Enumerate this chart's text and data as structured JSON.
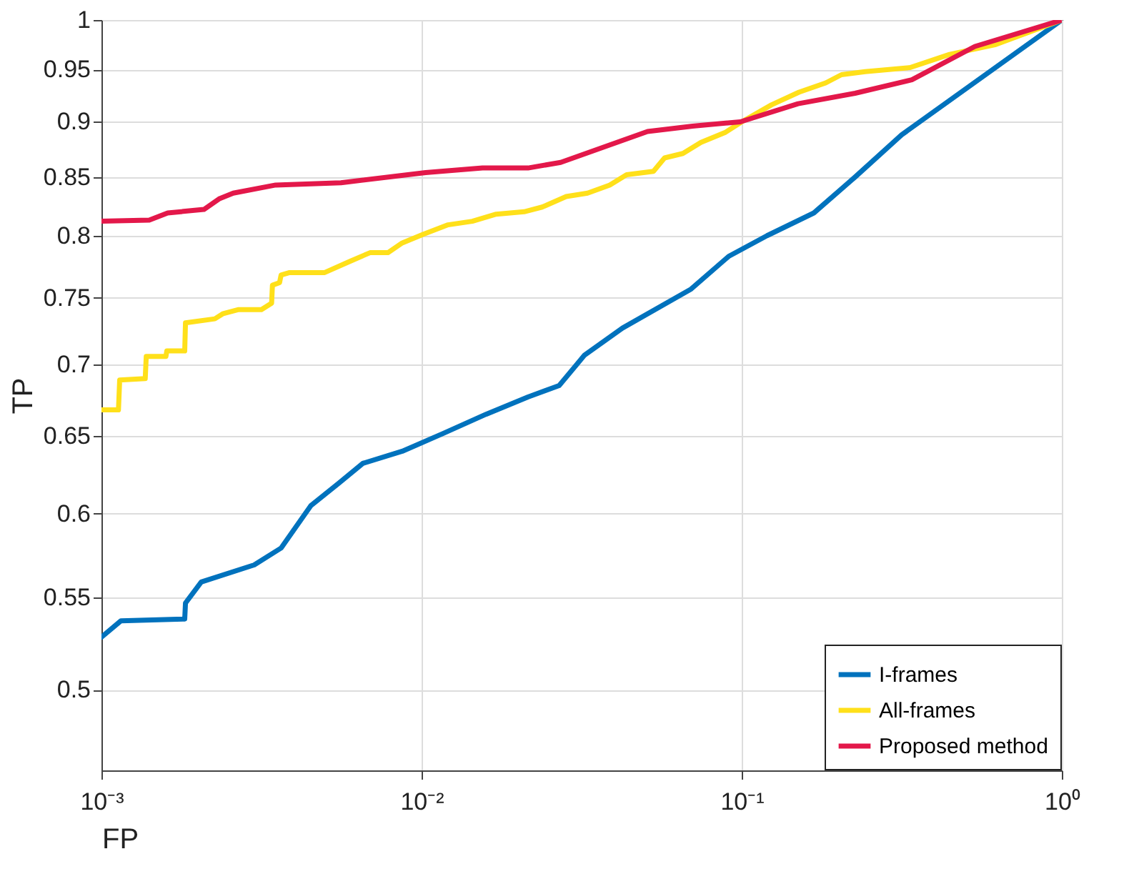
{
  "chart_data": {
    "type": "line",
    "xlabel": "FP",
    "ylabel": "TP",
    "log": "xy",
    "grid": true,
    "legend": "bottom right",
    "line_style": "solid",
    "marker": "none",
    "xlim": [
      0.001,
      1
    ],
    "xticks": [
      {
        "value": 0.001,
        "label": "10⁻³"
      },
      {
        "value": 0.01,
        "label": "10⁻²"
      },
      {
        "value": 0.1,
        "label": "10⁻¹"
      },
      {
        "value": 1,
        "label": "10⁰"
      }
    ],
    "ylim": [
      0.46,
      1
    ],
    "yticks": [
      0.5,
      0.55,
      0.6,
      0.65,
      0.7,
      0.75,
      0.8,
      0.85,
      0.9,
      0.95,
      1
    ],
    "series": [
      {
        "name": "I-frames",
        "color": "#0072bd",
        "x": [
          0.001,
          0.00115,
          0.00182,
          0.00183,
          0.00205,
          0.003,
          0.00364,
          0.00451,
          0.0055,
          0.00655,
          0.0087,
          0.0117,
          0.0159,
          0.0215,
          0.0269,
          0.0323,
          0.0424,
          0.0695,
          0.091,
          0.12,
          0.168,
          0.226,
          0.316,
          1
        ],
        "values": [
          0.528,
          0.537,
          0.538,
          0.547,
          0.559,
          0.569,
          0.579,
          0.605,
          0.619,
          0.632,
          0.64,
          0.652,
          0.665,
          0.677,
          0.685,
          0.707,
          0.727,
          0.757,
          0.783,
          0.8,
          0.819,
          0.85,
          0.888,
          1
        ]
      },
      {
        "name": "All-frames",
        "color": "#ffe01a",
        "x": [
          0.001,
          0.00113,
          0.00114,
          0.00137,
          0.00138,
          0.00159,
          0.0016,
          0.00182,
          0.00183,
          0.00226,
          0.0024,
          0.00267,
          0.00316,
          0.0034,
          0.00342,
          0.0036,
          0.00364,
          0.00387,
          0.00498,
          0.00597,
          0.0069,
          0.00785,
          0.0087,
          0.0101,
          0.0121,
          0.0144,
          0.0171,
          0.0209,
          0.0238,
          0.0283,
          0.033,
          0.0387,
          0.0437,
          0.053,
          0.0574,
          0.0655,
          0.0746,
          0.0886,
          0.1,
          0.124,
          0.151,
          0.183,
          0.205,
          0.243,
          0.336,
          0.446,
          0.622,
          1
        ],
        "values": [
          0.668,
          0.668,
          0.689,
          0.69,
          0.706,
          0.706,
          0.71,
          0.71,
          0.731,
          0.734,
          0.738,
          0.741,
          0.741,
          0.746,
          0.76,
          0.762,
          0.768,
          0.77,
          0.77,
          0.779,
          0.786,
          0.786,
          0.794,
          0.801,
          0.809,
          0.812,
          0.818,
          0.82,
          0.824,
          0.833,
          0.836,
          0.843,
          0.852,
          0.855,
          0.867,
          0.871,
          0.881,
          0.89,
          0.9,
          0.916,
          0.928,
          0.937,
          0.945,
          0.948,
          0.952,
          0.965,
          0.975,
          1
        ]
      },
      {
        "name": "Proposed method",
        "color": "#e3184a",
        "x": [
          0.001,
          0.00141,
          0.00161,
          0.00209,
          0.00233,
          0.00258,
          0.0035,
          0.0056,
          0.0103,
          0.0155,
          0.0215,
          0.0272,
          0.0508,
          0.0702,
          0.099,
          0.15,
          0.226,
          0.34,
          0.535,
          1
        ],
        "values": [
          0.812,
          0.813,
          0.819,
          0.822,
          0.831,
          0.836,
          0.843,
          0.845,
          0.854,
          0.858,
          0.858,
          0.863,
          0.891,
          0.896,
          0.9,
          0.917,
          0.927,
          0.94,
          0.973,
          1
        ]
      }
    ]
  }
}
